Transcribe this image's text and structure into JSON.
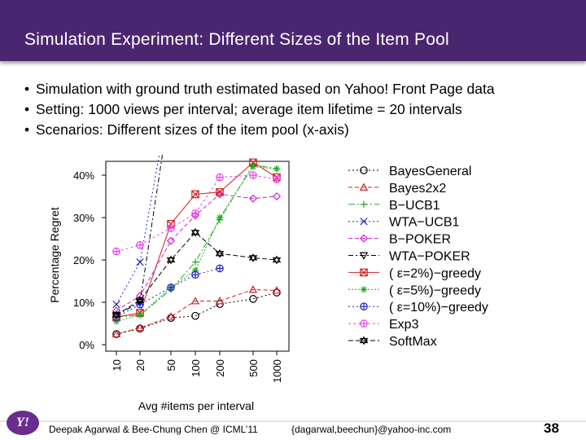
{
  "slide": {
    "title": "Simulation Experiment: Different Sizes of the Item Pool",
    "bullets": [
      "Simulation with ground truth estimated based on Yahoo! Front Page data",
      "Setting: 1000 views per interval; average item lifetime = 20 intervals",
      "Scenarios: Different sizes of the item pool (x-axis)"
    ],
    "footer_left": "Deepak Agarwal & Bee-Chung Chen @ ICML’11",
    "footer_mid": "{dagarwal,beechun}@yahoo-inc.com",
    "page_number": "38",
    "logo_text": "Y!"
  },
  "chart_data": {
    "type": "line",
    "xlabel": "Avg #items per interval",
    "ylabel": "Percentage Regret",
    "categories": [
      "10",
      "20",
      "50",
      "100",
      "200",
      "500",
      "1000"
    ],
    "y_ticks": [
      "0%",
      "10%",
      "20%",
      "30%",
      "40%"
    ],
    "ylim": [
      0,
      42
    ],
    "grid": false,
    "legend_position": "right",
    "series": [
      {
        "name": "BayesGeneral",
        "color": "#000000",
        "marker": "circle",
        "values": [
          2.5,
          3.8,
          6.3,
          6.8,
          9.6,
          10.8,
          12.3
        ]
      },
      {
        "name": "Bayes2x2",
        "color": "#d22020",
        "marker": "triangle",
        "values": [
          2.5,
          4.0,
          6.6,
          10.3,
          10.3,
          13.0,
          12.8
        ]
      },
      {
        "name": "B−UCB1",
        "color": "#22aa22",
        "marker": "plus",
        "values": [
          6.5,
          7.0,
          13.0,
          19.5,
          29.5,
          42.5,
          41.5
        ]
      },
      {
        "name": "WTA−UCB1",
        "color": "#2222cc",
        "marker": "x",
        "values": [
          9.5,
          19.5,
          60.0,
          null,
          null,
          null,
          null
        ]
      },
      {
        "name": "B−POKER",
        "color": "#cc22cc",
        "marker": "diamond",
        "values": [
          8.0,
          11.5,
          24.5,
          30.5,
          35.5,
          34.5,
          35.0
        ]
      },
      {
        "name": "WTA−POKER",
        "color": "#000000",
        "marker": "triangle-down",
        "values": [
          7.0,
          10.0,
          58.0,
          null,
          null,
          null,
          null
        ]
      },
      {
        "name": "( ε=2%)−greedy",
        "color": "#d22020",
        "marker": "boxed-x",
        "values": [
          6.5,
          7.5,
          28.5,
          35.5,
          36.0,
          43.0,
          39.5
        ]
      },
      {
        "name": "( ε=5%)−greedy",
        "color": "#22aa22",
        "marker": "star",
        "values": [
          5.5,
          7.0,
          13.5,
          17.5,
          30.0,
          42.0,
          41.5
        ]
      },
      {
        "name": "( ε=10%)−greedy",
        "color": "#2222cc",
        "marker": "circle-plus",
        "values": [
          6.5,
          9.5,
          13.5,
          16.5,
          18.0,
          null,
          null
        ]
      },
      {
        "name": "Exp3",
        "color": "#ee44ee",
        "marker": "circle-plus",
        "values": [
          22.0,
          23.5,
          27.5,
          31.0,
          39.5,
          40.0,
          39.0
        ]
      },
      {
        "name": "SoftMax",
        "color": "#000000",
        "marker": "star-of-david",
        "values": [
          7.0,
          10.5,
          20.0,
          26.5,
          21.5,
          20.5,
          20.0
        ]
      }
    ]
  }
}
